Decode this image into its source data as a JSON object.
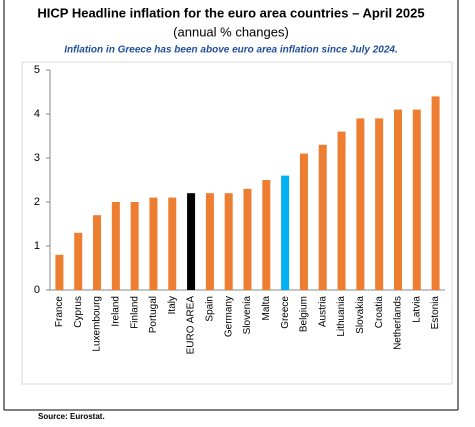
{
  "chart_data": {
    "type": "bar",
    "title": "HICP Headline inflation for the euro area countries – April 2025",
    "subtitle": "(annual % changes)",
    "annotation": "Inflation in Greece has been above euro area inflation since July 2024.",
    "source": "Source: Eurostat.",
    "categories": [
      "France",
      "Cyprus",
      "Luxembourg",
      "Ireland",
      "Finland",
      "Portugal",
      "Italy",
      "EURO AREA",
      "Spain",
      "Germany",
      "Slovenia",
      "Malta",
      "Greece",
      "Belgium",
      "Austria",
      "Lithuania",
      "Slovakia",
      "Croatia",
      "Netherlands",
      "Latvia",
      "Estonia"
    ],
    "values": [
      0.8,
      1.3,
      1.7,
      2.0,
      2.0,
      2.1,
      2.1,
      2.2,
      2.2,
      2.2,
      2.3,
      2.5,
      2.6,
      3.1,
      3.3,
      3.6,
      3.9,
      3.9,
      4.1,
      4.1,
      4.4
    ],
    "colors": [
      "#ed7d31",
      "#ed7d31",
      "#ed7d31",
      "#ed7d31",
      "#ed7d31",
      "#ed7d31",
      "#ed7d31",
      "#000000",
      "#ed7d31",
      "#ed7d31",
      "#ed7d31",
      "#ed7d31",
      "#00b0f0",
      "#ed7d31",
      "#ed7d31",
      "#ed7d31",
      "#ed7d31",
      "#ed7d31",
      "#ed7d31",
      "#ed7d31",
      "#ed7d31"
    ],
    "ylim": [
      0,
      5
    ],
    "yticks": [
      0,
      1,
      2,
      3,
      4,
      5
    ],
    "grid": false
  }
}
